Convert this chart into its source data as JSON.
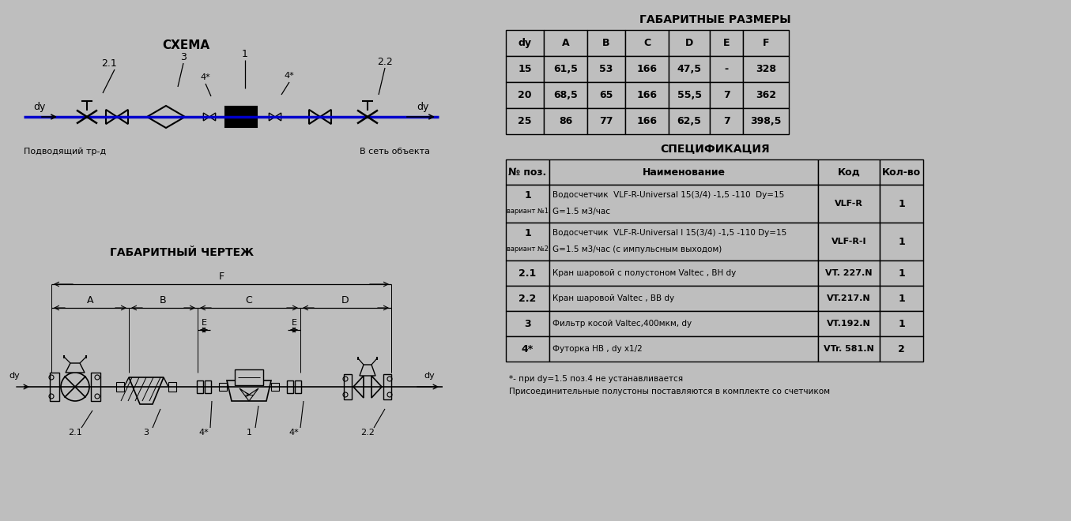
{
  "bg_color": "#bebebe",
  "title_schema": "СХЕМА",
  "title_gabarit_chertezh": "ГАБАРИТНЫЙ ЧЕРТЕЖ",
  "title_gabarit_razmery": "ГАБАРИТНЫЕ РАЗМЕРЫ",
  "title_spetsifikatsiya": "СПЕЦИФИКАЦИЯ",
  "pipe_color": "#0000cc",
  "line_color": "#000000",
  "dim_table_headers": [
    "dy",
    "A",
    "B",
    "C",
    "D",
    "E",
    "F"
  ],
  "dim_table_rows": [
    [
      "15",
      "61,5",
      "53",
      "166",
      "47,5",
      "-",
      "328"
    ],
    [
      "20",
      "68,5",
      "65",
      "166",
      "55,5",
      "7",
      "362"
    ],
    [
      "25",
      "86",
      "77",
      "166",
      "62,5",
      "7",
      "398,5"
    ]
  ],
  "spec_headers": [
    "№ поз.",
    "Наименование",
    "Код",
    "Кол-во"
  ],
  "spec_rows": [
    [
      "1\nвариант №1",
      "Водосчетчик  VLF-R-Universal 15(3/4) -1,5 -110  Dy=15\nG=1.5 м3/час",
      "VLF-R",
      "1"
    ],
    [
      "1\nвариант №2",
      "Водосчетчик  VLF-R-Universal I 15(3/4) -1,5 -110 Dy=15\nG=1.5 м3/час (с импульсным выходом)",
      "VLF-R-I",
      "1"
    ],
    [
      "2.1",
      "Кран шаровой с полустоном Valtec , ВН dy",
      "VT. 227.N",
      "1"
    ],
    [
      "2.2",
      "Кран шаровой Valtec , ВВ dy",
      "VT.217.N",
      "1"
    ],
    [
      "3",
      "Фильтр косой Valtec,400мкм, dy",
      "VT.192.N",
      "1"
    ],
    [
      "4*",
      "Футорка НВ , dy x1/2",
      "VTr. 581.N",
      "2"
    ]
  ],
  "footnote1": "*- при dy=1.5 поз.4 не устанавливается",
  "footnote2": "Присоединительные полустоны поставляются в комплекте со счетчиком"
}
